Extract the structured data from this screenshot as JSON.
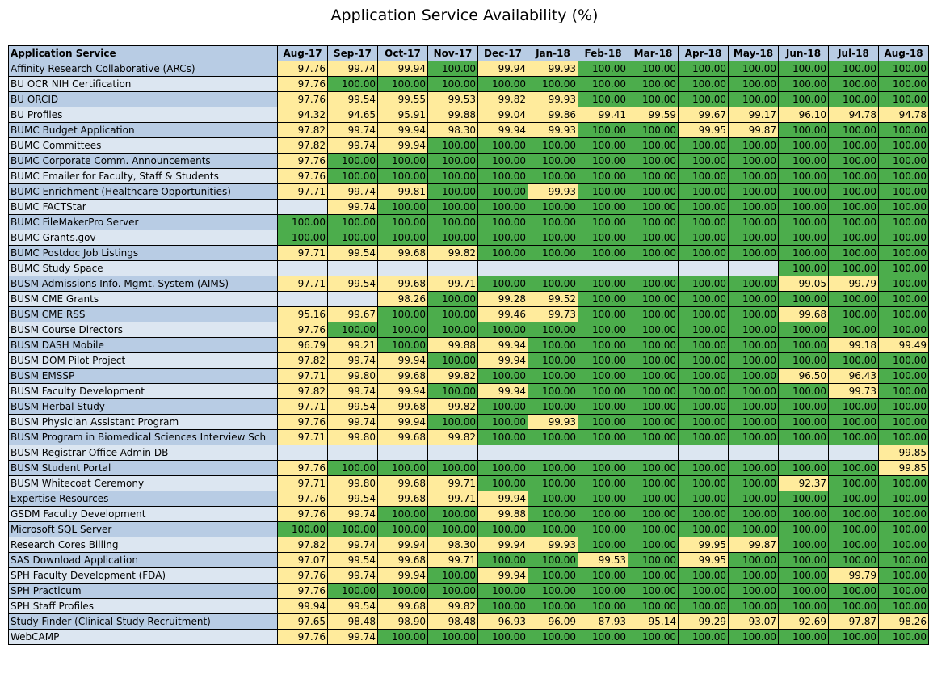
{
  "title": "Application Service Availability (%)",
  "colors": {
    "green": "#4cad4c",
    "yellow": "#ffeb9c",
    "header": "#b8cce4",
    "row_light": "#dce6f1"
  },
  "header": {
    "service_label": "Application Service",
    "months": [
      "Aug-17",
      "Sep-17",
      "Oct-17",
      "Nov-17",
      "Dec-17",
      "Jan-18",
      "Feb-18",
      "Mar-18",
      "Apr-18",
      "May-18",
      "Jun-18",
      "Jul-18",
      "Aug-18"
    ]
  },
  "rows": [
    {
      "name": "Affinity Research Collaborative (ARCs)",
      "values": [
        "97.76",
        "99.74",
        "99.94",
        "100.00",
        "99.94",
        "99.93",
        "100.00",
        "100.00",
        "100.00",
        "100.00",
        "100.00",
        "100.00",
        "100.00"
      ]
    },
    {
      "name": "BU OCR NIH Certification",
      "values": [
        "97.76",
        "100.00",
        "100.00",
        "100.00",
        "100.00",
        "100.00",
        "100.00",
        "100.00",
        "100.00",
        "100.00",
        "100.00",
        "100.00",
        "100.00"
      ]
    },
    {
      "name": "BU ORCID",
      "values": [
        "97.76",
        "99.54",
        "99.55",
        "99.53",
        "99.82",
        "99.93",
        "100.00",
        "100.00",
        "100.00",
        "100.00",
        "100.00",
        "100.00",
        "100.00"
      ]
    },
    {
      "name": "BU Profiles",
      "values": [
        "94.32",
        "94.65",
        "95.91",
        "99.88",
        "99.04",
        "99.86",
        "99.41",
        "99.59",
        "99.67",
        "99.17",
        "96.10",
        "94.78",
        "94.78"
      ]
    },
    {
      "name": "BUMC Budget Application",
      "values": [
        "97.82",
        "99.74",
        "99.94",
        "98.30",
        "99.94",
        "99.93",
        "100.00",
        "100.00",
        "99.95",
        "99.87",
        "100.00",
        "100.00",
        "100.00"
      ]
    },
    {
      "name": "BUMC Committees",
      "values": [
        "97.82",
        "99.74",
        "99.94",
        "100.00",
        "100.00",
        "100.00",
        "100.00",
        "100.00",
        "100.00",
        "100.00",
        "100.00",
        "100.00",
        "100.00"
      ]
    },
    {
      "name": "BUMC Corporate Comm. Announcements",
      "values": [
        "97.76",
        "100.00",
        "100.00",
        "100.00",
        "100.00",
        "100.00",
        "100.00",
        "100.00",
        "100.00",
        "100.00",
        "100.00",
        "100.00",
        "100.00"
      ]
    },
    {
      "name": "BUMC Emailer for Faculty, Staff & Students",
      "values": [
        "97.76",
        "100.00",
        "100.00",
        "100.00",
        "100.00",
        "100.00",
        "100.00",
        "100.00",
        "100.00",
        "100.00",
        "100.00",
        "100.00",
        "100.00"
      ]
    },
    {
      "name": "BUMC Enrichment (Healthcare Opportunities)",
      "values": [
        "97.71",
        "99.74",
        "99.81",
        "100.00",
        "100.00",
        "99.93",
        "100.00",
        "100.00",
        "100.00",
        "100.00",
        "100.00",
        "100.00",
        "100.00"
      ]
    },
    {
      "name": "BUMC FACTStar",
      "values": [
        "",
        "99.74",
        "100.00",
        "100.00",
        "100.00",
        "100.00",
        "100.00",
        "100.00",
        "100.00",
        "100.00",
        "100.00",
        "100.00",
        "100.00"
      ]
    },
    {
      "name": "BUMC FileMakerPro Server",
      "values": [
        "100.00",
        "100.00",
        "100.00",
        "100.00",
        "100.00",
        "100.00",
        "100.00",
        "100.00",
        "100.00",
        "100.00",
        "100.00",
        "100.00",
        "100.00"
      ]
    },
    {
      "name": "BUMC Grants.gov",
      "values": [
        "100.00",
        "100.00",
        "100.00",
        "100.00",
        "100.00",
        "100.00",
        "100.00",
        "100.00",
        "100.00",
        "100.00",
        "100.00",
        "100.00",
        "100.00"
      ]
    },
    {
      "name": "BUMC Postdoc Job Listings",
      "values": [
        "97.71",
        "99.54",
        "99.68",
        "99.82",
        "100.00",
        "100.00",
        "100.00",
        "100.00",
        "100.00",
        "100.00",
        "100.00",
        "100.00",
        "100.00"
      ]
    },
    {
      "name": "BUMC Study Space",
      "values": [
        "",
        "",
        "",
        "",
        "",
        "",
        "",
        "",
        "",
        "",
        "100.00",
        "100.00",
        "100.00"
      ]
    },
    {
      "name": "BUSM Admissions Info. Mgmt. System (AIMS)",
      "values": [
        "97.71",
        "99.54",
        "99.68",
        "99.71",
        "100.00",
        "100.00",
        "100.00",
        "100.00",
        "100.00",
        "100.00",
        "99.05",
        "99.79",
        "100.00"
      ]
    },
    {
      "name": "BUSM CME Grants",
      "values": [
        "",
        "",
        "98.26",
        "100.00",
        "99.28",
        "99.52",
        "100.00",
        "100.00",
        "100.00",
        "100.00",
        "100.00",
        "100.00",
        "100.00"
      ]
    },
    {
      "name": "BUSM CME RSS",
      "values": [
        "95.16",
        "99.67",
        "100.00",
        "100.00",
        "99.46",
        "99.73",
        "100.00",
        "100.00",
        "100.00",
        "100.00",
        "99.68",
        "100.00",
        "100.00"
      ]
    },
    {
      "name": "BUSM Course Directors",
      "values": [
        "97.76",
        "100.00",
        "100.00",
        "100.00",
        "100.00",
        "100.00",
        "100.00",
        "100.00",
        "100.00",
        "100.00",
        "100.00",
        "100.00",
        "100.00"
      ]
    },
    {
      "name": "BUSM DASH Mobile",
      "values": [
        "96.79",
        "99.21",
        "100.00",
        "99.88",
        "99.94",
        "100.00",
        "100.00",
        "100.00",
        "100.00",
        "100.00",
        "100.00",
        "99.18",
        "99.49"
      ]
    },
    {
      "name": "BUSM DOM Pilot Project",
      "values": [
        "97.82",
        "99.74",
        "99.94",
        "100.00",
        "99.94",
        "100.00",
        "100.00",
        "100.00",
        "100.00",
        "100.00",
        "100.00",
        "100.00",
        "100.00"
      ]
    },
    {
      "name": "BUSM EMSSP",
      "values": [
        "97.71",
        "99.80",
        "99.68",
        "99.82",
        "100.00",
        "100.00",
        "100.00",
        "100.00",
        "100.00",
        "100.00",
        "96.50",
        "96.43",
        "100.00"
      ]
    },
    {
      "name": "BUSM Faculty Development",
      "values": [
        "97.82",
        "99.74",
        "99.94",
        "100.00",
        "99.94",
        "100.00",
        "100.00",
        "100.00",
        "100.00",
        "100.00",
        "100.00",
        "99.73",
        "100.00"
      ]
    },
    {
      "name": "BUSM Herbal Study",
      "values": [
        "97.71",
        "99.54",
        "99.68",
        "99.82",
        "100.00",
        "100.00",
        "100.00",
        "100.00",
        "100.00",
        "100.00",
        "100.00",
        "100.00",
        "100.00"
      ]
    },
    {
      "name": "BUSM Physician Assistant Program",
      "values": [
        "97.76",
        "99.74",
        "99.94",
        "100.00",
        "100.00",
        "99.93",
        "100.00",
        "100.00",
        "100.00",
        "100.00",
        "100.00",
        "100.00",
        "100.00"
      ]
    },
    {
      "name": "BUSM Program in Biomedical Sciences Interview Sch",
      "values": [
        "97.71",
        "99.80",
        "99.68",
        "99.82",
        "100.00",
        "100.00",
        "100.00",
        "100.00",
        "100.00",
        "100.00",
        "100.00",
        "100.00",
        "100.00"
      ]
    },
    {
      "name": "BUSM Registrar Office Admin DB",
      "values": [
        "",
        "",
        "",
        "",
        "",
        "",
        "",
        "",
        "",
        "",
        "",
        "",
        "99.85"
      ]
    },
    {
      "name": "BUSM Student Portal",
      "values": [
        "97.76",
        "100.00",
        "100.00",
        "100.00",
        "100.00",
        "100.00",
        "100.00",
        "100.00",
        "100.00",
        "100.00",
        "100.00",
        "100.00",
        "99.85"
      ]
    },
    {
      "name": "BUSM Whitecoat Ceremony",
      "values": [
        "97.71",
        "99.80",
        "99.68",
        "99.71",
        "100.00",
        "100.00",
        "100.00",
        "100.00",
        "100.00",
        "100.00",
        "92.37",
        "100.00",
        "100.00"
      ]
    },
    {
      "name": "Expertise Resources",
      "values": [
        "97.76",
        "99.54",
        "99.68",
        "99.71",
        "99.94",
        "100.00",
        "100.00",
        "100.00",
        "100.00",
        "100.00",
        "100.00",
        "100.00",
        "100.00"
      ]
    },
    {
      "name": "GSDM Faculty Development",
      "values": [
        "97.76",
        "99.74",
        "100.00",
        "100.00",
        "99.88",
        "100.00",
        "100.00",
        "100.00",
        "100.00",
        "100.00",
        "100.00",
        "100.00",
        "100.00"
      ]
    },
    {
      "name": "Microsoft SQL Server",
      "values": [
        "100.00",
        "100.00",
        "100.00",
        "100.00",
        "100.00",
        "100.00",
        "100.00",
        "100.00",
        "100.00",
        "100.00",
        "100.00",
        "100.00",
        "100.00"
      ]
    },
    {
      "name": "Research Cores Billing",
      "values": [
        "97.82",
        "99.74",
        "99.94",
        "98.30",
        "99.94",
        "99.93",
        "100.00",
        "100.00",
        "99.95",
        "99.87",
        "100.00",
        "100.00",
        "100.00"
      ]
    },
    {
      "name": "SAS Download Application",
      "values": [
        "97.07",
        "99.54",
        "99.68",
        "99.71",
        "100.00",
        "100.00",
        "99.53",
        "100.00",
        "99.95",
        "100.00",
        "100.00",
        "100.00",
        "100.00"
      ]
    },
    {
      "name": "SPH Faculty Development (FDA)",
      "values": [
        "97.76",
        "99.74",
        "99.94",
        "100.00",
        "99.94",
        "100.00",
        "100.00",
        "100.00",
        "100.00",
        "100.00",
        "100.00",
        "99.79",
        "100.00"
      ]
    },
    {
      "name": "SPH Practicum",
      "values": [
        "97.76",
        "100.00",
        "100.00",
        "100.00",
        "100.00",
        "100.00",
        "100.00",
        "100.00",
        "100.00",
        "100.00",
        "100.00",
        "100.00",
        "100.00"
      ]
    },
    {
      "name": "SPH Staff Profiles",
      "values": [
        "99.94",
        "99.54",
        "99.68",
        "99.82",
        "100.00",
        "100.00",
        "100.00",
        "100.00",
        "100.00",
        "100.00",
        "100.00",
        "100.00",
        "100.00"
      ]
    },
    {
      "name": "Study Finder (Clinical Study Recruitment)",
      "values": [
        "97.65",
        "98.48",
        "98.90",
        "98.48",
        "96.93",
        "96.09",
        "87.93",
        "95.14",
        "99.29",
        "93.07",
        "92.69",
        "97.87",
        "98.26"
      ]
    },
    {
      "name": "WebCAMP",
      "values": [
        "97.76",
        "99.74",
        "100.00",
        "100.00",
        "100.00",
        "100.00",
        "100.00",
        "100.00",
        "100.00",
        "100.00",
        "100.00",
        "100.00",
        "100.00"
      ]
    }
  ]
}
